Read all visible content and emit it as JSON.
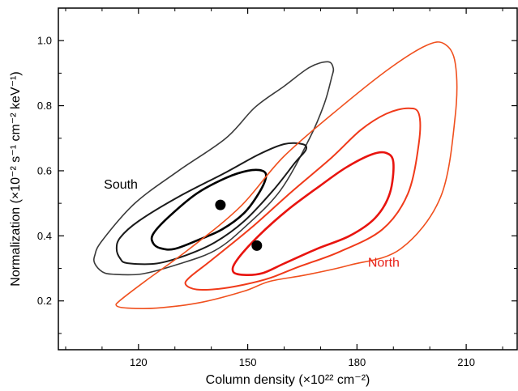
{
  "chart_data": {
    "type": "contour",
    "xlabel": "Column density (×10²² cm⁻²)",
    "ylabel": "Normalization (×10⁻² s⁻¹ cm⁻² keV⁻¹)",
    "xlim": [
      98,
      224
    ],
    "ylim": [
      0.05,
      1.1
    ],
    "x_ticks": [
      120,
      150,
      180,
      210
    ],
    "y_ticks": [
      0.2,
      0.4,
      0.6,
      0.8,
      1.0
    ],
    "x_tick_labels": [
      "120",
      "150",
      "180",
      "210"
    ],
    "y_tick_labels": [
      "0.2",
      "0.4",
      "0.6",
      "0.8",
      "1.0"
    ],
    "grid": false,
    "annotations": [
      {
        "text": "South",
        "x": 110.5,
        "y": 0.545,
        "color": "#000000"
      },
      {
        "text": "North",
        "x": 183,
        "y": 0.305,
        "color": "#e8231a"
      }
    ],
    "best_fit": [
      {
        "name": "South",
        "x": 142.5,
        "y": 0.495
      },
      {
        "name": "North",
        "x": 152.5,
        "y": 0.37
      }
    ],
    "contours": [
      {
        "group": "South",
        "level": "outer",
        "color": "#3a3a3a",
        "width": 1.6,
        "points": [
          [
            108,
            0.315
          ],
          [
            110,
            0.29
          ],
          [
            113,
            0.282
          ],
          [
            121,
            0.283
          ],
          [
            131,
            0.313
          ],
          [
            141,
            0.355
          ],
          [
            149,
            0.425
          ],
          [
            159,
            0.54
          ],
          [
            167,
            0.7
          ],
          [
            171,
            0.805
          ],
          [
            173,
            0.885
          ],
          [
            173.5,
            0.915
          ],
          [
            172,
            0.935
          ],
          [
            167,
            0.918
          ],
          [
            160,
            0.86
          ],
          [
            152,
            0.795
          ],
          [
            144,
            0.7
          ],
          [
            131,
            0.6
          ],
          [
            119,
            0.5
          ],
          [
            110,
            0.385
          ],
          [
            108,
            0.34
          ]
        ]
      },
      {
        "group": "South",
        "level": "mid",
        "color": "#1a1a1a",
        "width": 2.0,
        "points": [
          [
            114,
            0.36
          ],
          [
            115,
            0.33
          ],
          [
            117,
            0.316
          ],
          [
            125,
            0.315
          ],
          [
            133,
            0.34
          ],
          [
            141,
            0.38
          ],
          [
            149,
            0.445
          ],
          [
            157,
            0.54
          ],
          [
            163,
            0.625
          ],
          [
            166,
            0.665
          ],
          [
            165,
            0.682
          ],
          [
            160,
            0.682
          ],
          [
            153,
            0.65
          ],
          [
            144,
            0.595
          ],
          [
            131,
            0.52
          ],
          [
            120,
            0.445
          ],
          [
            115,
            0.395
          ]
        ]
      },
      {
        "group": "South",
        "level": "inner",
        "color": "#000000",
        "width": 2.6,
        "points": [
          [
            124,
            0.378
          ],
          [
            126,
            0.362
          ],
          [
            130,
            0.36
          ],
          [
            137,
            0.39
          ],
          [
            143,
            0.42
          ],
          [
            149,
            0.47
          ],
          [
            153,
            0.53
          ],
          [
            155,
            0.58
          ],
          [
            154,
            0.6
          ],
          [
            150,
            0.6
          ],
          [
            144,
            0.578
          ],
          [
            136,
            0.53
          ],
          [
            128,
            0.455
          ],
          [
            124,
            0.405
          ]
        ]
      },
      {
        "group": "North",
        "level": "outer",
        "color": "#f0501e",
        "width": 1.6,
        "points": [
          [
            114,
            0.185
          ],
          [
            117,
            0.178
          ],
          [
            125,
            0.178
          ],
          [
            137,
            0.195
          ],
          [
            149,
            0.23
          ],
          [
            156,
            0.26
          ],
          [
            166,
            0.28
          ],
          [
            178,
            0.31
          ],
          [
            192,
            0.36
          ],
          [
            203,
            0.52
          ],
          [
            207,
            0.77
          ],
          [
            207,
            0.93
          ],
          [
            204,
            0.99
          ],
          [
            199,
            0.985
          ],
          [
            189,
            0.915
          ],
          [
            176,
            0.8
          ],
          [
            160,
            0.645
          ],
          [
            148,
            0.49
          ],
          [
            134,
            0.36
          ],
          [
            122,
            0.262
          ],
          [
            115,
            0.202
          ]
        ]
      },
      {
        "group": "North",
        "level": "mid",
        "color": "#f03a1a",
        "width": 2.0,
        "points": [
          [
            133,
            0.25
          ],
          [
            136,
            0.235
          ],
          [
            142,
            0.237
          ],
          [
            149,
            0.25
          ],
          [
            156,
            0.27
          ],
          [
            164,
            0.305
          ],
          [
            175,
            0.35
          ],
          [
            187,
            0.42
          ],
          [
            194,
            0.53
          ],
          [
            197,
            0.685
          ],
          [
            197,
            0.775
          ],
          [
            194,
            0.792
          ],
          [
            188,
            0.775
          ],
          [
            181,
            0.725
          ],
          [
            173,
            0.64
          ],
          [
            162,
            0.535
          ],
          [
            151,
            0.425
          ],
          [
            140,
            0.325
          ],
          [
            134,
            0.272
          ]
        ]
      },
      {
        "group": "North",
        "level": "inner",
        "color": "#e8140f",
        "width": 2.6,
        "points": [
          [
            146,
            0.29
          ],
          [
            149,
            0.28
          ],
          [
            154,
            0.285
          ],
          [
            160,
            0.315
          ],
          [
            169,
            0.36
          ],
          [
            178,
            0.4
          ],
          [
            185,
            0.455
          ],
          [
            189,
            0.53
          ],
          [
            190,
            0.625
          ],
          [
            188,
            0.655
          ],
          [
            184,
            0.65
          ],
          [
            177,
            0.61
          ],
          [
            170,
            0.555
          ],
          [
            161,
            0.48
          ],
          [
            153,
            0.4
          ],
          [
            147,
            0.325
          ]
        ]
      }
    ]
  }
}
